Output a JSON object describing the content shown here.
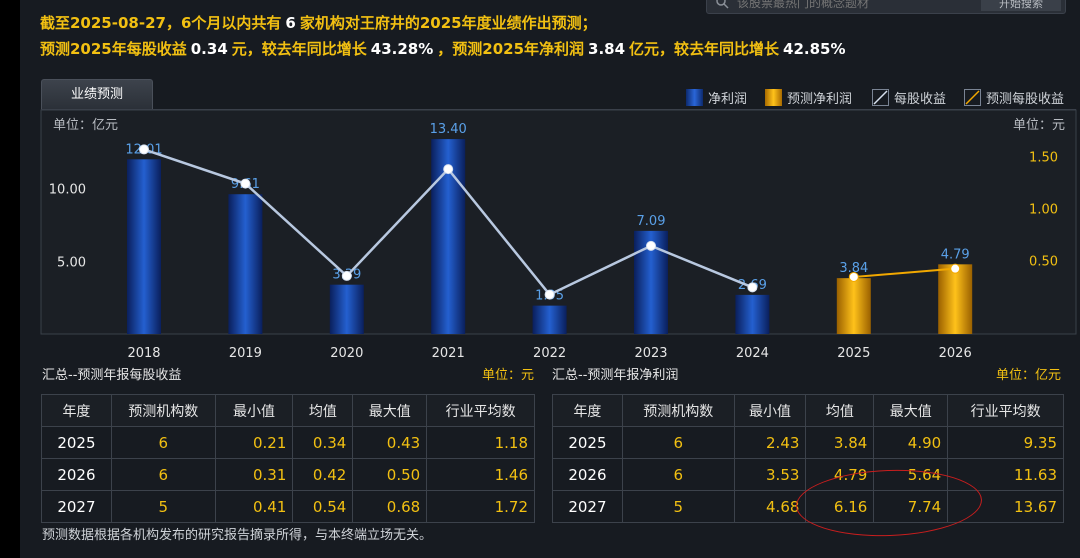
{
  "search": {
    "placeholder": "该股票最热门的概念题材",
    "button": "开始搜索"
  },
  "summary": {
    "line1": {
      "pre": "截至2025-08-27，6个月以内共有",
      "count": "6",
      "post": "家机构对王府井的2025年度业绩作出预测；"
    },
    "line2": {
      "a": "预测2025年每股收益",
      "eps": "0.34",
      "b": "元，较去年同比增长",
      "eps_growth": "43.28%",
      "c": "，预测2025年净利润",
      "profit": "3.84",
      "d": "亿元，较去年同比增长",
      "profit_growth": "42.85%"
    }
  },
  "tab": {
    "label": "业绩预测"
  },
  "legend": [
    {
      "label": "净利润",
      "type": "bar",
      "color": "#1a4fb8"
    },
    {
      "label": "预测净利润",
      "type": "bar",
      "color": "#f2a800"
    },
    {
      "label": "每股收益",
      "type": "line",
      "color": "#b8c8e0"
    },
    {
      "label": "预测每股收益",
      "type": "line",
      "color": "#f2a800"
    }
  ],
  "chart_data": {
    "type": "bar",
    "categories": [
      "2018",
      "2019",
      "2020",
      "2021",
      "2022",
      "2023",
      "2024",
      "2025",
      "2026"
    ],
    "series": [
      {
        "name": "净利润",
        "axis": "left",
        "values": [
          12.01,
          9.61,
          3.39,
          13.4,
          1.95,
          7.09,
          2.69,
          null,
          null
        ],
        "labels": [
          "12.01",
          "9.61",
          "3.39",
          "13.40",
          "1.95",
          "7.09",
          "2.69",
          "",
          ""
        ],
        "color": "#1a4fb8"
      },
      {
        "name": "预测净利润",
        "axis": "left",
        "values": [
          null,
          null,
          null,
          null,
          null,
          null,
          null,
          3.84,
          4.79
        ],
        "labels": [
          "",
          "",
          "",
          "",
          "",
          "",
          "",
          "3.84",
          "4.79"
        ],
        "color": "#f2a800"
      },
      {
        "name": "每股收益",
        "axis": "right",
        "type": "line",
        "values": [
          1.57,
          1.24,
          0.35,
          1.38,
          0.17,
          0.64,
          0.24,
          null,
          null
        ],
        "color": "#b8c8e0"
      },
      {
        "name": "预测每股收益",
        "axis": "right",
        "type": "line",
        "values": [
          null,
          null,
          null,
          null,
          null,
          null,
          null,
          0.34,
          0.42
        ],
        "color": "#f2a800"
      }
    ],
    "left_axis": {
      "label": "单位：亿元",
      "ylim": [
        0,
        15.4
      ],
      "ticks": [
        5,
        10
      ],
      "tick_labels": [
        "5.00",
        "10.00"
      ]
    },
    "right_axis": {
      "label": "单位：元",
      "ylim": [
        -0.21,
        1.95
      ],
      "ticks": [
        0.5,
        1.0,
        1.5
      ],
      "tick_labels": [
        "0.50",
        "1.00",
        "1.50"
      ]
    }
  },
  "eps_table": {
    "title": "汇总--预测年报每股收益",
    "unit": "单位：元",
    "headers": [
      "年度",
      "预测机构数",
      "最小值",
      "均值",
      "最大值",
      "行业平均数"
    ],
    "rows": [
      [
        "2025",
        "6",
        "0.21",
        "0.34",
        "0.43",
        "1.18"
      ],
      [
        "2026",
        "6",
        "0.31",
        "0.42",
        "0.50",
        "1.46"
      ],
      [
        "2027",
        "5",
        "0.41",
        "0.54",
        "0.68",
        "1.72"
      ]
    ]
  },
  "profit_table": {
    "title": "汇总--预测年报净利润",
    "unit": "单位：亿元",
    "headers": [
      "年度",
      "预测机构数",
      "最小值",
      "均值",
      "最大值",
      "行业平均数"
    ],
    "rows": [
      [
        "2025",
        "6",
        "2.43",
        "3.84",
        "4.90",
        "9.35"
      ],
      [
        "2026",
        "6",
        "3.53",
        "4.79",
        "5.64",
        "11.63"
      ],
      [
        "2027",
        "5",
        "4.68",
        "6.16",
        "7.74",
        "13.67"
      ]
    ]
  },
  "footnote": "预测数据根据各机构发布的研究报告摘录所得，与本终端立场无关。",
  "colors": {
    "accent": "#f2c012",
    "bar_blue": "#1a4fb8",
    "bar_orange": "#f2a800",
    "annotation_circle": "#c81e1e"
  }
}
